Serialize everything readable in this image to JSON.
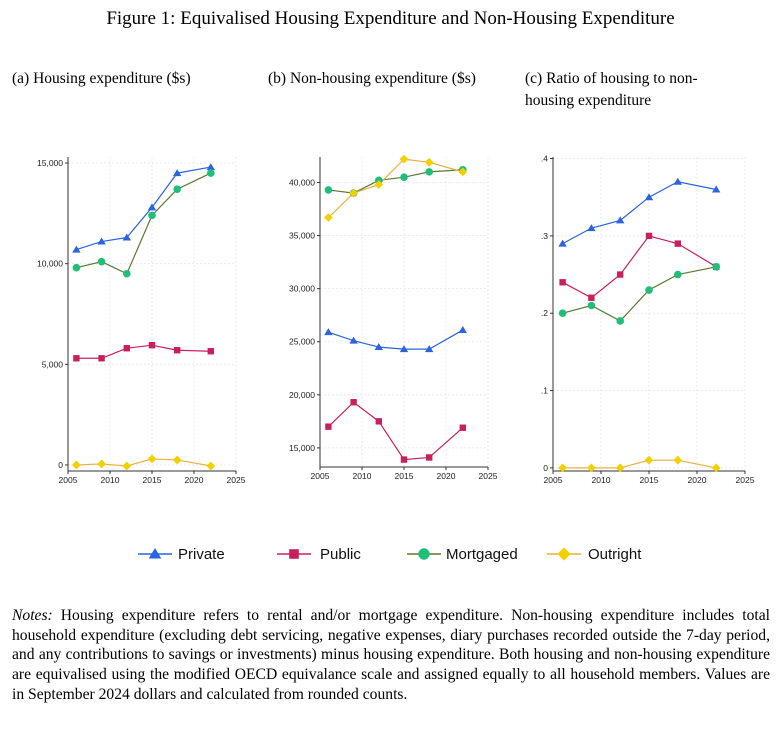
{
  "figure": {
    "title": "Figure 1: Equivalised Housing Expenditure and Non-Housing Expenditure"
  },
  "panels": [
    {
      "title_line1": "(a) Housing expenditure ($s)",
      "title_line2": ""
    },
    {
      "title_line1": "(b) Non-housing expenditure ($s)",
      "title_line2": ""
    },
    {
      "title_line1": "(c) Ratio of housing to non-",
      "title_line2": "housing expenditure"
    }
  ],
  "colors": {
    "Private": "#2b63e0",
    "Public": "#c8205f",
    "Mortgaged": "#1fbf7a",
    "Mortgaged_line": "#5a7a32",
    "Outright": "#f5d000",
    "Outright_line": "#e8b040"
  },
  "chart_data": [
    {
      "type": "line",
      "title": "(a) Housing expenditure ($s)",
      "x": [
        2006,
        2009,
        2012,
        2015,
        2018,
        2022
      ],
      "xticks": [
        2005,
        2010,
        2015,
        2020,
        2025
      ],
      "xtick_labels": [
        "2005",
        "2010",
        "2015",
        "2020",
        "2025"
      ],
      "xlim": [
        2005,
        2025
      ],
      "ylim": [
        -300,
        15300
      ],
      "yticks": [
        0,
        5000,
        10000,
        15000
      ],
      "ytick_labels": [
        "0",
        "5,000",
        "10,000",
        "15,000"
      ],
      "grid": true,
      "series": [
        {
          "name": "Private",
          "marker": "triangle",
          "values": [
            10700,
            11100,
            11300,
            12800,
            14500,
            14800
          ]
        },
        {
          "name": "Public",
          "marker": "square",
          "values": [
            5300,
            5300,
            5800,
            5950,
            5700,
            5650
          ]
        },
        {
          "name": "Mortgaged",
          "marker": "circle",
          "values": [
            9800,
            10100,
            9500,
            12400,
            13700,
            14500
          ]
        },
        {
          "name": "Outright",
          "marker": "diamond",
          "values": [
            0,
            50,
            -50,
            300,
            250,
            -50
          ]
        }
      ]
    },
    {
      "type": "line",
      "title": "(b) Non-housing expenditure ($s)",
      "x": [
        2006,
        2009,
        2012,
        2015,
        2018,
        2022
      ],
      "xticks": [
        2005,
        2010,
        2015,
        2020,
        2025
      ],
      "xtick_labels": [
        "2005",
        "2010",
        "2015",
        "2020",
        "2025"
      ],
      "xlim": [
        2005,
        2025
      ],
      "ylim": [
        13200,
        42400
      ],
      "yticks": [
        15000,
        20000,
        25000,
        30000,
        35000,
        40000
      ],
      "ytick_labels": [
        "15,000",
        "20,000",
        "25,000",
        "30,000",
        "35,000",
        "40,000"
      ],
      "grid": true,
      "series": [
        {
          "name": "Private",
          "marker": "triangle",
          "values": [
            25900,
            25100,
            24500,
            24300,
            24300,
            26100
          ]
        },
        {
          "name": "Public",
          "marker": "square",
          "values": [
            17000,
            19300,
            17500,
            13900,
            14100,
            16900
          ]
        },
        {
          "name": "Mortgaged",
          "marker": "circle",
          "values": [
            39300,
            39000,
            40200,
            40500,
            41000,
            41200
          ]
        },
        {
          "name": "Outright",
          "marker": "diamond",
          "values": [
            36700,
            39000,
            39800,
            42200,
            41900,
            41000
          ]
        }
      ]
    },
    {
      "type": "line",
      "title": "(c) Ratio of housing to non-housing expenditure",
      "x": [
        2006,
        2009,
        2012,
        2015,
        2018,
        2022
      ],
      "xticks": [
        2005,
        2010,
        2015,
        2020,
        2025
      ],
      "xtick_labels": [
        "2005",
        "2010",
        "2015",
        "2020",
        "2025"
      ],
      "xlim": [
        2005,
        2025
      ],
      "ylim": [
        -0.004,
        0.402
      ],
      "yticks": [
        0,
        0.1,
        0.2,
        0.3,
        0.4
      ],
      "ytick_labels": [
        "0",
        ".1",
        ".2",
        ".3",
        ".4"
      ],
      "grid": true,
      "series": [
        {
          "name": "Private",
          "marker": "triangle",
          "values": [
            0.29,
            0.31,
            0.32,
            0.35,
            0.37,
            0.36
          ]
        },
        {
          "name": "Public",
          "marker": "square",
          "values": [
            0.24,
            0.22,
            0.25,
            0.3,
            0.29,
            0.26
          ]
        },
        {
          "name": "Mortgaged",
          "marker": "circle",
          "values": [
            0.2,
            0.21,
            0.19,
            0.23,
            0.25,
            0.26
          ]
        },
        {
          "name": "Outright",
          "marker": "diamond",
          "values": [
            0.0,
            0.0,
            0.0,
            0.01,
            0.01,
            0.0
          ]
        }
      ]
    }
  ],
  "legend": [
    {
      "name": "Private",
      "label": "Private",
      "marker": "triangle"
    },
    {
      "name": "Public",
      "label": "Public",
      "marker": "square"
    },
    {
      "name": "Mortgaged",
      "label": "Mortgaged",
      "marker": "circle"
    },
    {
      "name": "Outright",
      "label": "Outright",
      "marker": "diamond"
    }
  ],
  "notes": {
    "label": "Notes:",
    "text": " Housing expenditure refers to rental and/or mortgage expenditure. Non-housing expenditure includes total household expenditure (excluding debt servicing, negative expenses, diary purchases recorded outside the 7-day period, and any contributions to savings or investments) minus housing expenditure. Both housing and non-housing expenditure are equivalised using the modified OECD equivalance scale and assigned equally to all household members. Values are in September 2024 dollars and calculated from rounded counts."
  }
}
